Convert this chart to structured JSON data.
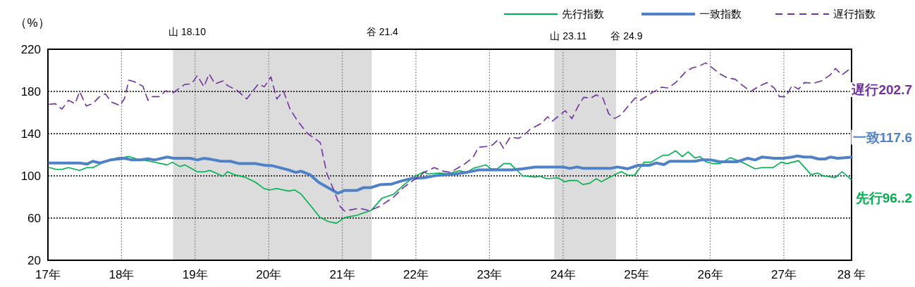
{
  "chart_data": {
    "type": "line",
    "ylabel": "（%）",
    "ylim": [
      20,
      220
    ],
    "yticks": [
      20,
      60,
      100,
      140,
      180,
      220
    ],
    "xlim": [
      17,
      27.92
    ],
    "xticks": [
      {
        "value": 17,
        "label": "17年"
      },
      {
        "value": 18,
        "label": "18年"
      },
      {
        "value": 19,
        "label": "19年"
      },
      {
        "value": 20,
        "label": "20年"
      },
      {
        "value": 21,
        "label": "21年"
      },
      {
        "value": 22,
        "label": "22年"
      },
      {
        "value": 23,
        "label": "23年"
      },
      {
        "value": 24,
        "label": "24年"
      },
      {
        "value": 25,
        "label": "25年"
      },
      {
        "value": 26,
        "label": "26年"
      },
      {
        "value": 27,
        "label": "27年"
      },
      {
        "value": 27.92,
        "label": "28 年"
      }
    ],
    "grid": true,
    "legend": "top right",
    "marker": "none",
    "bands": [
      {
        "axis": "x",
        "from": 18.7,
        "to": 21.4,
        "color": "#dcdcdc"
      },
      {
        "axis": "x",
        "from": 23.88,
        "to": 24.72,
        "color": "#dcdcdc"
      }
    ],
    "annotations": [
      "山 18.10",
      "谷 21.4",
      "山 23.11",
      "谷 24.9"
    ],
    "series": [
      {
        "name": "先行指数",
        "color": "#00b050",
        "line_style": "solid",
        "x": [
          17.02,
          17.11,
          17.19,
          17.28,
          17.43,
          17.53,
          17.61,
          17.76,
          17.95,
          18.02,
          18.1,
          18.2,
          18.42,
          18.62,
          18.69,
          18.79,
          18.86,
          19.03,
          19.12,
          19.2,
          19.38,
          19.44,
          19.53,
          19.67,
          19.82,
          19.94,
          20.01,
          20.11,
          20.27,
          20.35,
          20.44,
          20.59,
          20.7,
          20.81,
          20.92,
          21.03,
          21.2,
          21.39,
          21.54,
          21.7,
          21.83,
          21.97,
          22.11,
          22.16,
          22.31,
          22.44,
          22.59,
          22.69,
          22.78,
          22.95,
          23.02,
          23.11,
          23.19,
          23.28,
          23.45,
          23.62,
          23.68,
          23.78,
          23.93,
          24.02,
          24.09,
          24.19,
          24.27,
          24.36,
          24.45,
          24.52,
          24.62,
          24.7,
          24.79,
          24.88,
          24.97,
          25.1,
          25.19,
          25.36,
          25.43,
          25.53,
          25.62,
          25.7,
          25.79,
          25.86,
          25.94,
          26.03,
          26.13,
          26.27,
          26.42,
          26.61,
          26.7,
          26.85,
          26.96,
          27.04,
          27.2,
          27.37,
          27.46,
          27.53,
          27.7,
          27.79,
          27.92
        ],
        "values": [
          107.8,
          106.2,
          106.2,
          107.8,
          105.1,
          107.8,
          107.8,
          112.9,
          117.3,
          117.3,
          118.4,
          116.2,
          113.3,
          110.4,
          112.9,
          108.9,
          110.4,
          103.8,
          103.8,
          105.1,
          99.6,
          104,
          101.1,
          98.9,
          94,
          87.8,
          86.7,
          88,
          85.6,
          86.7,
          82.7,
          70,
          60.4,
          56.7,
          55.1,
          60.4,
          62.7,
          67.1,
          78.9,
          82.7,
          91.1,
          98.9,
          103.8,
          101.8,
          102.7,
          102.2,
          104.9,
          103.3,
          107.1,
          110.4,
          106.7,
          106.7,
          111.6,
          111.6,
          100,
          98.9,
          99.6,
          97.3,
          98.2,
          94.4,
          95.6,
          95.6,
          91.8,
          92.9,
          97.3,
          94.4,
          98.2,
          101.1,
          104,
          100.7,
          100.7,
          112.9,
          112.9,
          119.6,
          119.6,
          123.8,
          118.2,
          122.7,
          117.1,
          118.2,
          113.3,
          111.6,
          111.6,
          117.1,
          113.3,
          106.7,
          107.8,
          107.8,
          112.9,
          111.6,
          114.4,
          101.1,
          102.7,
          100,
          98.4,
          104,
          96.2
        ],
        "value_labels": [
          null,
          null,
          null,
          null,
          null,
          null,
          null,
          null,
          null,
          null,
          null,
          null,
          null,
          null,
          null,
          null,
          null,
          null,
          null,
          null,
          null,
          null,
          null,
          null,
          null,
          null,
          null,
          null,
          null,
          null,
          null,
          null,
          null,
          null,
          null,
          null,
          null,
          null,
          null,
          null,
          null,
          null,
          null,
          null,
          null,
          null,
          null,
          null,
          null,
          null,
          null,
          null,
          null,
          null,
          null,
          null,
          null,
          null,
          null,
          null,
          null,
          null,
          null,
          null,
          null,
          null,
          null,
          null,
          null,
          null,
          null,
          null,
          null,
          null,
          null,
          null,
          null,
          null,
          null,
          null,
          null,
          null,
          null,
          null,
          null,
          null,
          null,
          null,
          null,
          null,
          null,
          null,
          null,
          null,
          null,
          null,
          "先行96..2"
        ]
      },
      {
        "name": "一致指数",
        "color": "#4f81c7",
        "line_style": "solid",
        "x": [
          17.02,
          17.43,
          17.53,
          17.61,
          17.71,
          17.85,
          18.04,
          18.14,
          18.26,
          18.36,
          18.45,
          18.62,
          18.71,
          18.93,
          19.03,
          19.12,
          19.22,
          19.34,
          19.48,
          19.6,
          19.82,
          19.95,
          20.05,
          20.27,
          20.37,
          20.44,
          20.56,
          20.68,
          20.94,
          21.03,
          21.2,
          21.29,
          21.39,
          21.51,
          21.67,
          21.8,
          21.96,
          22.11,
          22.28,
          22.54,
          22.69,
          22.85,
          23.3,
          23.45,
          23.62,
          24.0,
          24.09,
          24.19,
          24.28,
          24.64,
          24.74,
          24.88,
          25.02,
          25.17,
          25.27,
          25.37,
          25.45,
          25.79,
          25.88,
          26.01,
          26.13,
          26.36,
          26.51,
          26.61,
          26.7,
          26.87,
          26.99,
          27.12,
          27.18,
          27.28,
          27.37,
          27.47,
          27.56,
          27.63,
          27.73,
          27.92
        ],
        "values": [
          112.2,
          112.2,
          111.1,
          113.8,
          112.2,
          115.1,
          116.7,
          115.1,
          115.1,
          116.2,
          115.1,
          117.8,
          116.7,
          116.7,
          115.1,
          116.7,
          115.6,
          114,
          113.8,
          111.6,
          111.6,
          110,
          109.6,
          105.6,
          103.3,
          104.4,
          101.1,
          93.8,
          83.5,
          86.2,
          86.2,
          88.9,
          88.9,
          91.6,
          92.2,
          95.1,
          97.8,
          98.2,
          100.4,
          101.8,
          103.3,
          105.6,
          105.6,
          106.7,
          108.4,
          108.4,
          107.1,
          108.4,
          107.1,
          107.1,
          108.4,
          106.7,
          110,
          110,
          112.2,
          110.7,
          113.8,
          113.8,
          115.1,
          115.1,
          113.3,
          113.3,
          116.7,
          115.1,
          117.8,
          116.7,
          116.7,
          117.8,
          118.9,
          117.8,
          117.8,
          116,
          116,
          117.8,
          116.7,
          117.6
        ],
        "value_labels": [
          null,
          null,
          null,
          null,
          null,
          null,
          null,
          null,
          null,
          null,
          null,
          null,
          null,
          null,
          null,
          null,
          null,
          null,
          null,
          null,
          null,
          null,
          null,
          null,
          null,
          null,
          null,
          null,
          null,
          null,
          null,
          null,
          null,
          null,
          null,
          null,
          null,
          null,
          null,
          null,
          null,
          null,
          null,
          null,
          null,
          null,
          null,
          null,
          null,
          null,
          null,
          null,
          null,
          null,
          null,
          null,
          null,
          null,
          null,
          null,
          null,
          null,
          null,
          null,
          null,
          null,
          null,
          null,
          null,
          null,
          null,
          null,
          null,
          null,
          null,
          "一致117.6"
        ]
      },
      {
        "name": "遅行指数",
        "color": "#7030a0",
        "line_style": "dashed",
        "x": [
          17.02,
          17.1,
          17.19,
          17.28,
          17.37,
          17.43,
          17.52,
          17.61,
          17.69,
          17.78,
          17.86,
          17.98,
          18.04,
          18.1,
          18.17,
          18.29,
          18.36,
          18.42,
          18.52,
          18.6,
          18.69,
          18.86,
          18.95,
          19.03,
          19.12,
          19.19,
          19.27,
          19.38,
          19.44,
          19.57,
          19.7,
          19.86,
          19.94,
          20.03,
          20.11,
          20.2,
          20.29,
          20.39,
          20.53,
          20.7,
          20.79,
          20.87,
          20.97,
          21.03,
          21.23,
          21.37,
          21.51,
          21.7,
          21.83,
          21.96,
          22.04,
          22.11,
          22.25,
          22.37,
          22.47,
          22.66,
          22.78,
          22.85,
          22.95,
          23.04,
          23.12,
          23.19,
          23.28,
          23.4,
          23.49,
          23.55,
          23.71,
          23.79,
          23.85,
          24.03,
          24.12,
          24.21,
          24.28,
          24.38,
          24.45,
          24.54,
          24.62,
          24.7,
          24.79,
          24.89,
          24.98,
          25.05,
          25.21,
          25.34,
          25.43,
          25.53,
          25.67,
          25.75,
          25.84,
          25.94,
          26.03,
          26.13,
          26.23,
          26.34,
          26.42,
          26.55,
          26.68,
          26.77,
          26.87,
          26.94,
          27.03,
          27.11,
          27.2,
          27.28,
          27.41,
          27.51,
          27.63,
          27.7,
          27.79,
          27.92
        ],
        "values": [
          167.8,
          168.4,
          163.3,
          171.6,
          168.4,
          180,
          166.2,
          168.4,
          174.4,
          177.8,
          170,
          166.7,
          173.3,
          190.7,
          189.3,
          184.9,
          171.6,
          175.1,
          175.1,
          180.7,
          178.2,
          186.7,
          187.1,
          195.1,
          184.4,
          196.7,
          187.1,
          190,
          185.6,
          181.1,
          172.9,
          187.1,
          184.4,
          193.8,
          172.9,
          180.4,
          163.3,
          152.2,
          140,
          131.6,
          102.2,
          88.9,
          71.1,
          66.7,
          69.3,
          67.1,
          71.1,
          80,
          88.9,
          95.6,
          98.9,
          103.3,
          107.8,
          104.4,
          103.3,
          111.1,
          117.8,
          127.1,
          127.8,
          129.3,
          134.4,
          126.2,
          136.7,
          135.6,
          140,
          144,
          150,
          156,
          151.6,
          161.8,
          154.2,
          166.7,
          174.4,
          173.8,
          176.7,
          173.8,
          158.9,
          154.4,
          157.8,
          166.7,
          173.8,
          171.6,
          178.9,
          184,
          183.3,
          188.4,
          198.9,
          202.2,
          203.8,
          207.1,
          202.2,
          196.7,
          192.9,
          191.6,
          186.7,
          180,
          185.6,
          188.4,
          183.3,
          175.1,
          175.1,
          185.6,
          182.2,
          188.4,
          187.8,
          190,
          195.6,
          201.8,
          195.6,
          202.7
        ],
        "value_labels": [
          null,
          null,
          null,
          null,
          null,
          null,
          null,
          null,
          null,
          null,
          null,
          null,
          null,
          null,
          null,
          null,
          null,
          null,
          null,
          null,
          null,
          null,
          null,
          null,
          null,
          null,
          null,
          null,
          null,
          null,
          null,
          null,
          null,
          null,
          null,
          null,
          null,
          null,
          null,
          null,
          null,
          null,
          null,
          null,
          null,
          null,
          null,
          null,
          null,
          null,
          null,
          null,
          null,
          null,
          null,
          null,
          null,
          null,
          null,
          null,
          null,
          null,
          null,
          null,
          null,
          null,
          null,
          null,
          null,
          null,
          null,
          null,
          null,
          null,
          null,
          null,
          null,
          null,
          null,
          null,
          null,
          null,
          null,
          null,
          null,
          null,
          null,
          null,
          null,
          null,
          null,
          null,
          null,
          null,
          null,
          null,
          null,
          null,
          null,
          null,
          null,
          null,
          null,
          null,
          null,
          null,
          null,
          null,
          null,
          "遅行202.7"
        ]
      }
    ]
  }
}
